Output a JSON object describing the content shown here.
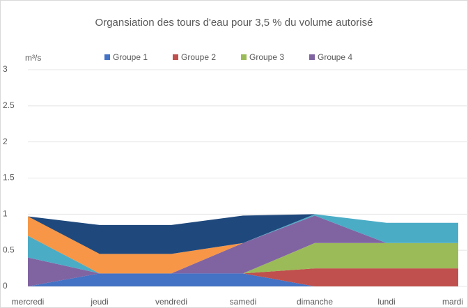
{
  "chart_data": {
    "type": "stacked_area",
    "title": "Organsiation des tours d'eau pour 3,5 % du volume autorisé",
    "y_label": "m³/s",
    "categories": [
      "mercredi",
      "jeudi",
      "vendredi",
      "samedi",
      "dimanche",
      "lundi",
      "mardi"
    ],
    "series": [
      {
        "name": "Groupe 1",
        "color": "#4472c4",
        "values": [
          0,
          0.18,
          0.18,
          0.18,
          0,
          0,
          0
        ]
      },
      {
        "name": "Groupe 2",
        "color": "#c0504d",
        "values": [
          0,
          0,
          0,
          0,
          0.25,
          0.25,
          0.25
        ]
      },
      {
        "name": "Groupe 3",
        "color": "#9bbb59",
        "values": [
          0,
          0,
          0,
          0,
          0.35,
          0.35,
          0.35
        ]
      },
      {
        "name": "Groupe 4",
        "color": "#8064a2",
        "values": [
          0.4,
          0,
          0,
          0.42,
          0.38,
          0,
          0
        ]
      },
      {
        "color": "#4bacc6",
        "values": [
          0.3,
          0,
          0,
          0,
          0.02,
          0.28,
          0.28
        ]
      },
      {
        "color": "#f79646",
        "values": [
          0.27,
          0.27,
          0.27,
          0,
          0,
          0,
          0
        ]
      },
      {
        "color": "#1f497d",
        "values": [
          0,
          0.4,
          0.4,
          0.38,
          0,
          0,
          0
        ]
      }
    ],
    "ylim": [
      0,
      3
    ],
    "yticks": [
      0,
      0.5,
      1,
      1.5,
      2,
      2.5,
      3
    ],
    "grid": true,
    "legend": "top"
  }
}
